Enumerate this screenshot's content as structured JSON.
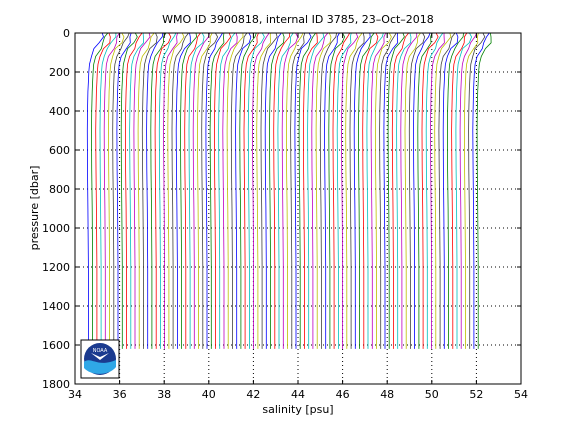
{
  "chart_data": {
    "type": "line",
    "title": "WMO ID 3900818, internal ID 3785, 23–Oct–2018",
    "xlabel": "salinity [psu]",
    "ylabel": "pressure [dbar]",
    "xlim": [
      34,
      54
    ],
    "ylim": [
      0,
      1800
    ],
    "y_reversed": true,
    "grid": true,
    "grid_style": "dotted",
    "xticks": [
      34,
      36,
      38,
      40,
      42,
      44,
      46,
      48,
      50,
      52,
      54
    ],
    "yticks": [
      0,
      200,
      400,
      600,
      800,
      1000,
      1200,
      1400,
      1600,
      1800
    ],
    "profile_pressure_max": 1620,
    "profile_count": 93,
    "profile_offset_step": 0.19,
    "first_profile_deep_salinity": 34.6,
    "series_colors": [
      "#0000ff",
      "#008000",
      "#ff0000",
      "#00bfbf",
      "#bf00bf",
      "#bfbf00",
      "#404040"
    ],
    "profile_shape": {
      "pressure": [
        0,
        20,
        50,
        80,
        120,
        160,
        200,
        250,
        300,
        400,
        500,
        700,
        900,
        1200,
        1620
      ],
      "salinity_offset": [
        0.62,
        0.6,
        0.5,
        0.32,
        0.14,
        0.05,
        0.02,
        0.0,
        -0.02,
        -0.04,
        -0.05,
        -0.04,
        -0.02,
        0.0,
        0.0
      ]
    }
  },
  "logo": {
    "name": "noaa-logo",
    "text": "NOAA"
  }
}
